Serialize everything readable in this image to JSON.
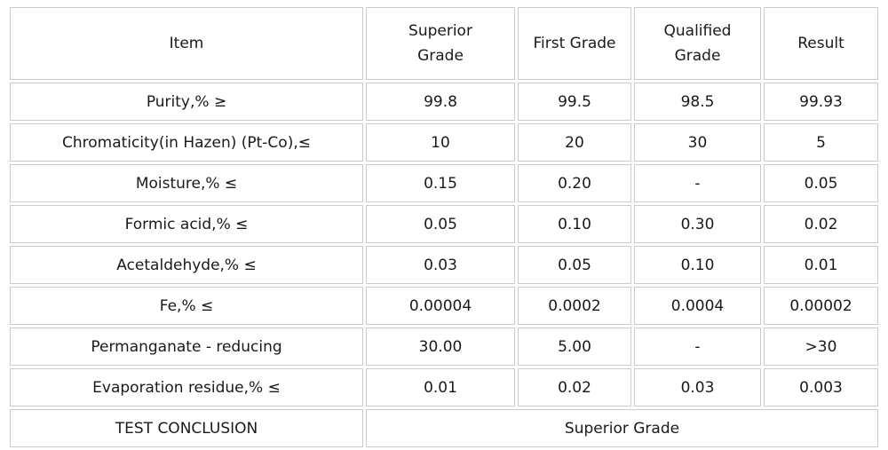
{
  "colors": {
    "border": "#cbcbcb",
    "text": "#1a1a1a",
    "background": "#ffffff"
  },
  "table": {
    "headers": {
      "item": "Item",
      "superior": "Superior\nGrade",
      "first": "First Grade",
      "qualified": "Qualified\nGrade",
      "result": "Result"
    },
    "rows": [
      {
        "item": "Purity,% ≥",
        "values": [
          "99.8",
          "99.5",
          "98.5",
          "99.93"
        ]
      },
      {
        "item": "Chromaticity(in Hazen) (Pt-Co),≤",
        "values": [
          "10",
          "20",
          "30",
          "5"
        ]
      },
      {
        "item": "Moisture,% ≤",
        "values": [
          "0.15",
          "0.20",
          "-",
          "0.05"
        ]
      },
      {
        "item": "Formic acid,% ≤",
        "values": [
          "0.05",
          "0.10",
          "0.30",
          "0.02"
        ]
      },
      {
        "item": "Acetaldehyde,% ≤",
        "values": [
          "0.03",
          "0.05",
          "0.10",
          "0.01"
        ]
      },
      {
        "item": "Fe,% ≤",
        "values": [
          "0.00004",
          "0.0002",
          "0.0004",
          "0.00002"
        ]
      },
      {
        "item": "Permanganate - reducing",
        "values": [
          "30.00",
          "5.00",
          "-",
          ">30"
        ]
      },
      {
        "item": "Evaporation residue,% ≤",
        "values": [
          "0.01",
          "0.02",
          "0.03",
          "0.003"
        ]
      }
    ],
    "conclusion": {
      "label": "TEST CONCLUSION",
      "value": "Superior Grade"
    }
  }
}
